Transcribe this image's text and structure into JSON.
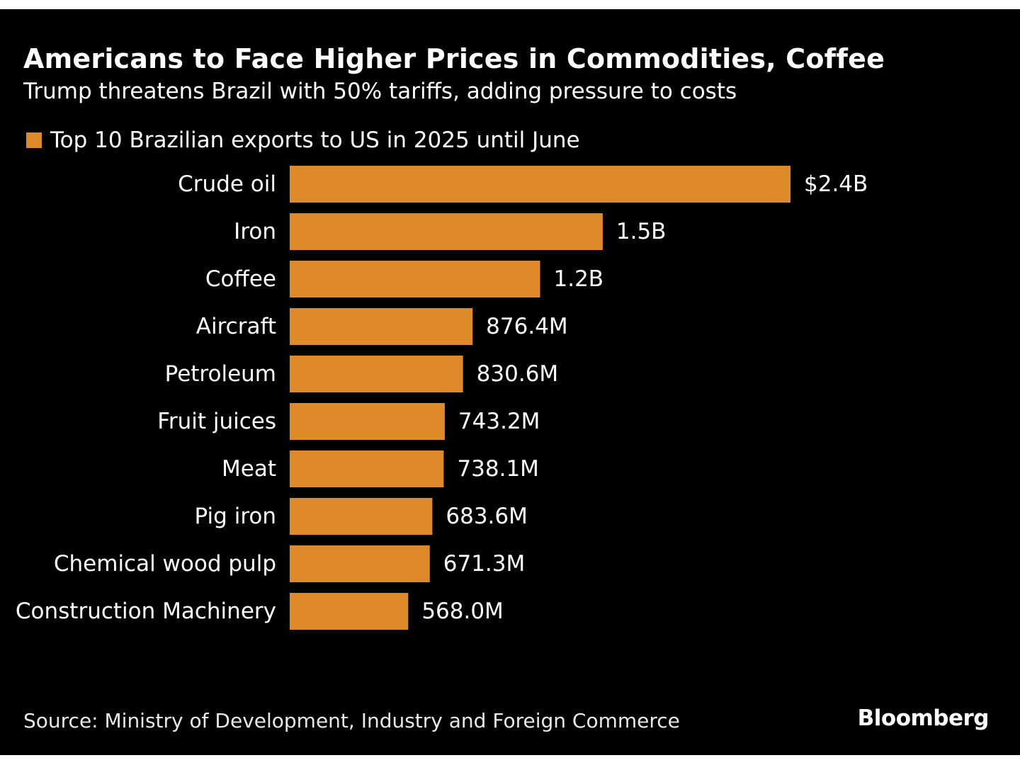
{
  "colors": {
    "background": "#000000",
    "bar": "#de8a2b",
    "text": "#ffffff"
  },
  "brand": "Bloomberg",
  "source": "Source: Ministry of Development, Industry and Foreign Commerce",
  "chart_data": {
    "type": "bar",
    "orientation": "horizontal",
    "title": "Americans to Face Higher Prices in Commodities, Coffee",
    "subtitle": "Trump threatens Brazil with 50% tariffs, adding pressure to costs",
    "legend": "Top 10 Brazilian exports to US in 2025 until June",
    "legend_position": "top-left",
    "categories": [
      "Crude oil",
      "Iron",
      "Coffee",
      "Aircraft",
      "Petroleum",
      "Fruit juices",
      "Meat",
      "Pig iron",
      "Chemical wood pulp",
      "Construction Machinery"
    ],
    "values": [
      2400,
      1500,
      1200,
      876.4,
      830.6,
      743.2,
      738.1,
      683.6,
      671.3,
      568.0
    ],
    "value_labels": [
      "$2.4B",
      "1.5B",
      "1.2B",
      "876.4M",
      "830.6M",
      "743.2M",
      "738.1M",
      "683.6M",
      "671.3M",
      "568.0M"
    ],
    "unit": "USD millions",
    "xlim": [
      0,
      2400
    ],
    "grid": false
  }
}
